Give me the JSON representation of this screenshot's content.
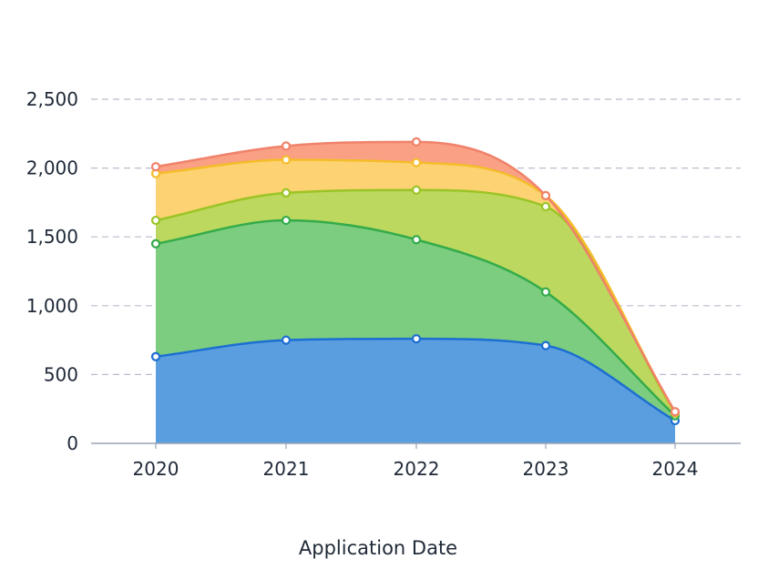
{
  "chart_data": {
    "type": "area",
    "stacked": true,
    "xlabel": "Application Date",
    "ylabel": "",
    "title": "",
    "categories": [
      "2020",
      "2021",
      "2022",
      "2023",
      "2024"
    ],
    "ylim": [
      0,
      2500
    ],
    "yticks": [
      0,
      500,
      1000,
      1500,
      2000,
      2500
    ],
    "ytick_labels": [
      "0",
      "500",
      "1,000",
      "1,500",
      "2,000",
      "2,500"
    ],
    "grid": true,
    "legend": "none",
    "series": [
      {
        "values": [
          630,
          750,
          760,
          710,
          165
        ],
        "color": "#1c6fd1",
        "fill": "#5a9ee0"
      },
      {
        "values": [
          820,
          870,
          720,
          390,
          35
        ],
        "color": "#34ab4a",
        "fill": "#7ccd7f"
      },
      {
        "values": [
          170,
          200,
          360,
          620,
          20
        ],
        "color": "#9ac425",
        "fill": "#bcd85e"
      },
      {
        "values": [
          340,
          240,
          200,
          80,
          5
        ],
        "color": "#f4bd29",
        "fill": "#fdd272"
      },
      {
        "values": [
          50,
          100,
          150,
          0,
          5
        ],
        "color": "#f0826a",
        "fill": "#f9a085"
      }
    ]
  }
}
